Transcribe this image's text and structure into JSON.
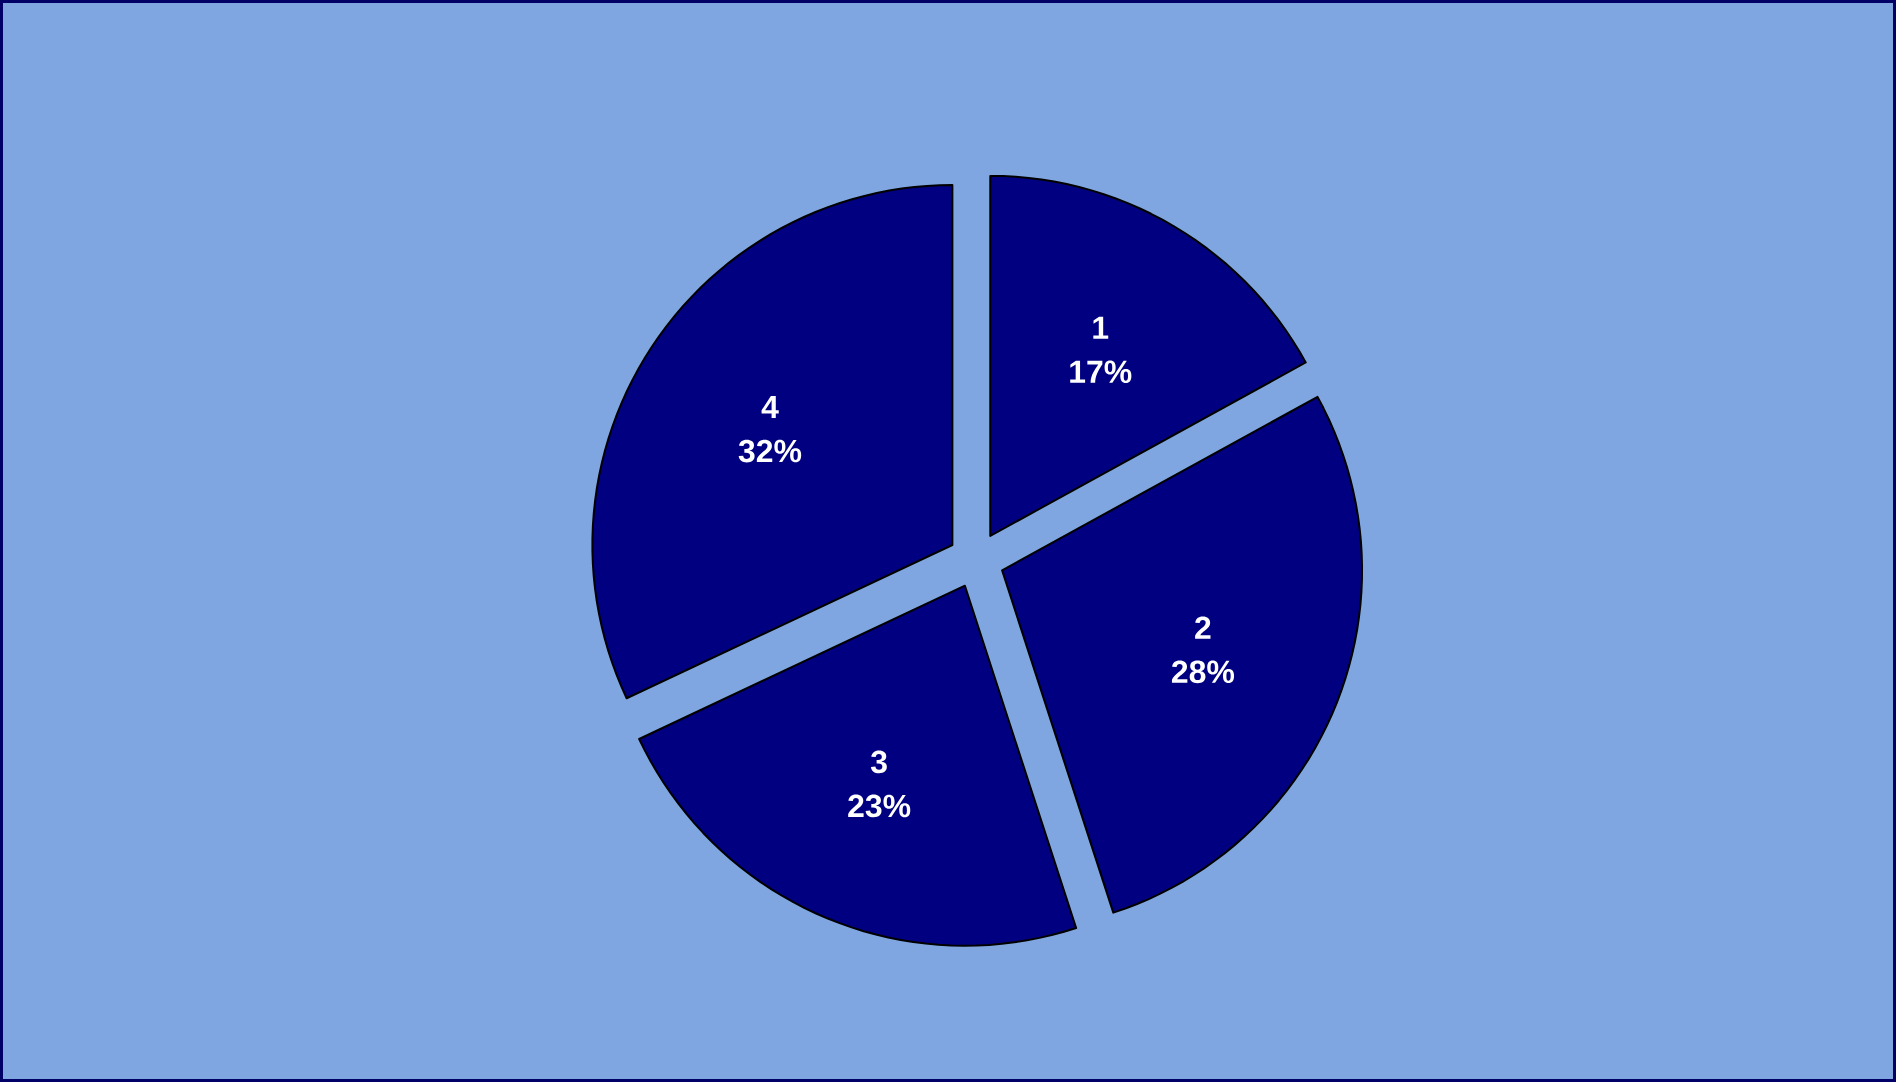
{
  "chart_data": {
    "type": "pie",
    "categories": [
      "1",
      "2",
      "3",
      "4"
    ],
    "values": [
      17,
      28,
      23,
      32
    ],
    "value_labels": [
      "17%",
      "28%",
      "23%",
      "32%"
    ],
    "colors": [
      "#000080",
      "#000080",
      "#000080",
      "#000080"
    ]
  }
}
